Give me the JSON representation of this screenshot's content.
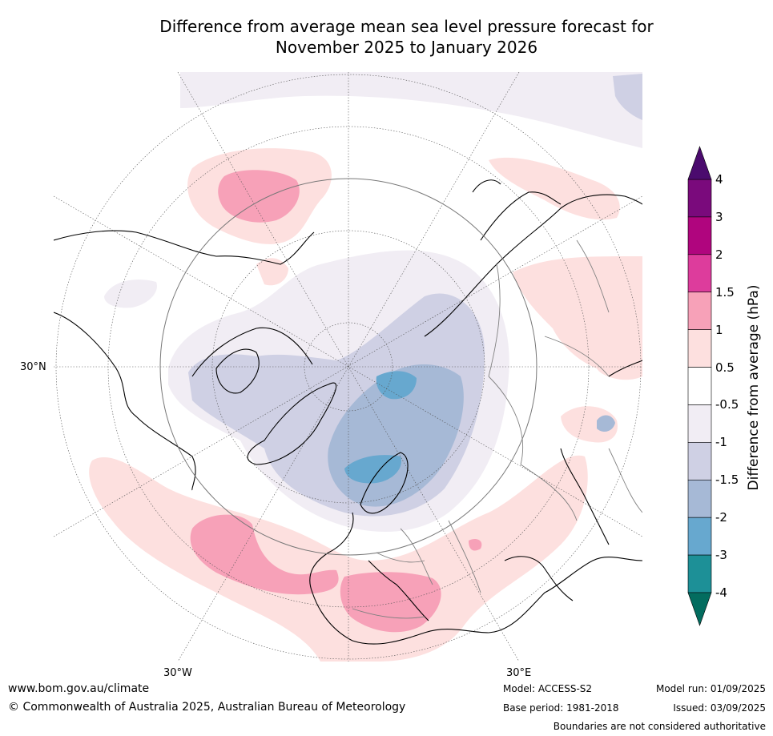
{
  "title_line1": "Difference from average mean sea level pressure forecast for",
  "title_line2": "November 2025 to January 2026",
  "map": {
    "projection": "north-polar-stereographic",
    "graticule_labels": {
      "left": "30°N",
      "bottom_left": "30°W",
      "bottom_right": "30°E"
    },
    "features": [
      "negative anomaly over Arctic, Greenland and Scandinavia",
      "positive anomaly over mid-North Atlantic and Mediterranean"
    ]
  },
  "colorbar": {
    "title": "Difference from average (hPa)",
    "ticks": [
      "4",
      "3",
      "2",
      "1.5",
      "1",
      "0.5",
      "-0.5",
      "-1",
      "-1.5",
      "-2",
      "-3",
      "-4"
    ],
    "colors_top_to_bottom": [
      "#4b0b6e",
      "#7a0a7c",
      "#b0057e",
      "#dd3c9c",
      "#f7a1b8",
      "#fde0df",
      "#ffffff",
      "#f1edf4",
      "#cfd0e4",
      "#a6b9d6",
      "#67a8cf",
      "#1d9097",
      "#036c5f"
    ]
  },
  "footer": {
    "website": "www.bom.gov.au/climate",
    "copyright": "© Commonwealth of Australia 2025, Australian Bureau of Meteorology",
    "model": "Model: ACCESS-S2",
    "base_period": "Base period: 1981-2018",
    "model_run": "Model run: 01/09/2025",
    "issued": "Issued: 03/09/2025",
    "disclaimer": "Boundaries are not considered authoritative"
  }
}
